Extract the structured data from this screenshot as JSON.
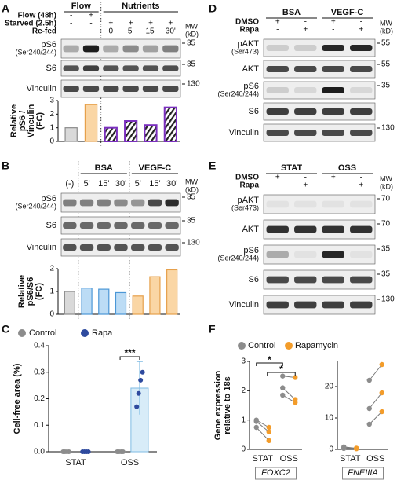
{
  "letters": [
    "A",
    "B",
    "C",
    "D",
    "E",
    "F"
  ],
  "blots": [
    {
      "groups": [
        "Flow",
        "Nutrients"
      ],
      "conditions": [
        {
          "label": "Flow (48h)",
          "signs": [
            "-",
            "+"
          ]
        },
        {
          "label": "Starved (2.5h)",
          "signs": [
            "-",
            "-",
            "+",
            "+",
            "+",
            "+"
          ]
        },
        {
          "label": "Re-fed",
          "signs": [
            "0",
            "5'",
            "15'",
            "30'"
          ]
        }
      ],
      "mw_header": [
        "MW",
        "(kD)"
      ],
      "rows": [
        {
          "label": "pS6",
          "sub": "(Ser240/244)",
          "mw": 35
        },
        {
          "label": "S6",
          "mw": 35
        },
        {
          "label": "Vinculin",
          "mw": 130
        }
      ]
    },
    {
      "groups": [
        "BSA",
        "VEGF-C"
      ],
      "lane_labels": [
        "(-)",
        "5'",
        "15'",
        "30'",
        "5'",
        "15'",
        "30'"
      ],
      "mw_header": [
        "MW",
        "(kD)"
      ],
      "rows": [
        {
          "label": "pS6",
          "sub": "(Ser240/244)",
          "mw": 35
        },
        {
          "label": "S6",
          "mw": 35
        },
        {
          "label": "Vinculin",
          "mw": 130
        }
      ]
    },
    {
      "groups": [
        "BSA",
        "VEGF-C"
      ],
      "conditions": [
        {
          "label": "DMSO",
          "signs": [
            "+",
            "-",
            "+",
            "-"
          ]
        },
        {
          "label": "Rapa",
          "signs": [
            "-",
            "+",
            "-",
            "+"
          ]
        }
      ],
      "mw_header": [
        "MW",
        "(kD)"
      ],
      "rows": [
        {
          "label": "pAKT",
          "sub": "(Ser473)",
          "mw": 55
        },
        {
          "label": "AKT",
          "mw": 55
        },
        {
          "label": "pS6",
          "sub": "(Ser240/244)",
          "mw": 35
        },
        {
          "label": "S6"
        },
        {
          "label": "Vinculin",
          "mw": 130
        }
      ]
    },
    {
      "groups": [
        "STAT",
        "OSS"
      ],
      "conditions": [
        {
          "label": "DMSO",
          "signs": [
            "+",
            "-",
            "+",
            "-"
          ]
        },
        {
          "label": "Rapa",
          "signs": [
            "-",
            "+",
            "-",
            "+"
          ]
        }
      ],
      "mw_header": [
        "MW",
        "(kD)"
      ],
      "rows": [
        {
          "label": "pAKT",
          "sub": "(Ser473)",
          "mw": 70
        },
        {
          "label": "AKT",
          "mw": 70
        },
        {
          "label": "pS6",
          "sub": "(Ser240/244)",
          "mw": 35
        },
        {
          "label": "S6",
          "mw": 35
        },
        {
          "label": "Vinculin",
          "mw": 130
        }
      ]
    }
  ],
  "chart_data": [
    {
      "type": "bar",
      "ylabel": [
        "Relative",
        "pS6 /",
        "Vinculin",
        "(FC)"
      ],
      "values": [
        1,
        2.7,
        1.0,
        1.5,
        1.2,
        2.5
      ],
      "colors": [
        "#d9d9d9",
        "#fad6a5",
        "#ffffff",
        "#ffffff",
        "#ffffff",
        "#ffffff"
      ],
      "edgecolors": [
        "#8c8c8c",
        "#e6a04b",
        "#7b2fbf",
        "#7b2fbf",
        "#7b2fbf",
        "#7b2fbf"
      ],
      "hatch": [
        false,
        false,
        true,
        true,
        true,
        true
      ],
      "ylim": [
        0,
        3
      ],
      "yticks": [
        0,
        1,
        2,
        3
      ]
    },
    {
      "type": "bar",
      "ylabel": [
        "Relative",
        "pS6/S6",
        "(FC)"
      ],
      "values": [
        1,
        1.15,
        1.1,
        0.95,
        0.8,
        1.65,
        1.95
      ],
      "colors": [
        "#d9d9d9",
        "#bcdcf5",
        "#bcdcf5",
        "#bcdcf5",
        "#fad6a5",
        "#fad6a5",
        "#fad6a5"
      ],
      "edgecolors": [
        "#8c8c8c",
        "#4b97d6",
        "#4b97d6",
        "#4b97d6",
        "#e6a04b",
        "#e6a04b",
        "#e6a04b"
      ],
      "hatch": [
        false,
        false,
        false,
        false,
        false,
        false,
        false
      ],
      "ylim": [
        0,
        2
      ],
      "yticks": [
        0,
        1,
        2
      ]
    },
    {
      "type": "dotbar",
      "ylabel": "Cell-free area (%)",
      "categories": [
        "STAT",
        "OSS"
      ],
      "series": [
        {
          "name": "Control",
          "color": "#8c8c8c",
          "bar_color": "#e6e6e6",
          "edge_color": "#8c8c8c",
          "values": [
            0,
            0
          ],
          "points": [
            [
              0,
              0,
              0,
              0
            ],
            [
              0,
              0,
              0,
              0
            ]
          ]
        },
        {
          "name": "Rapa",
          "color": "#2e4a9e",
          "bar_color": "#d8ecf8",
          "edge_color": "#7fbbe3",
          "values": [
            0,
            0.24
          ],
          "errors": [
            0,
            0.1
          ],
          "points": [
            [
              0,
              0,
              0,
              0
            ],
            [
              0.17,
              0.22,
              0.27,
              0.3
            ]
          ]
        }
      ],
      "ylim": [
        0,
        0.4
      ],
      "yticks": [
        {
          "value": 0,
          "label": "0.0"
        },
        {
          "value": 0.1,
          "label": "0.1"
        },
        {
          "value": 0.2,
          "label": "0.2"
        },
        {
          "value": 0.3,
          "label": "0.3"
        },
        {
          "value": 0.4,
          "label": "0.4"
        }
      ],
      "annotation": "***"
    },
    {
      "type": "paired",
      "ylabel": [
        "Gene expression",
        "relative to 18s"
      ],
      "xlabel": "FOXC2",
      "categories": [
        "STAT",
        "OSS"
      ],
      "series": [
        {
          "name": "Control",
          "color": "#8c8c8c",
          "values": [
            [
              1.0,
              0.95,
              0.75
            ],
            [
              2.1,
              2.5,
              1.85
            ]
          ]
        },
        {
          "name": "Rapamycin",
          "color": "#f39c2a",
          "values": [
            [
              0.75,
              0.6,
              0.3
            ],
            [
              1.7,
              2.45,
              1.6
            ]
          ]
        }
      ],
      "ylim": [
        0,
        3
      ],
      "yticks": [
        0,
        1,
        2,
        3
      ],
      "annotations": [
        "*",
        "*"
      ]
    },
    {
      "type": "paired",
      "xlabel": "FNEIIIA",
      "categories": [
        "STAT",
        "OSS"
      ],
      "series": [
        {
          "color": "#8c8c8c",
          "values": [
            [
              0.8,
              0.5,
              0.3
            ],
            [
              8,
              13,
              22
            ]
          ]
        },
        {
          "color": "#f39c2a",
          "values": [
            [
              0.3,
              0.4,
              0.2
            ],
            [
              12,
              18,
              27
            ]
          ]
        }
      ],
      "ylim": [
        0,
        28
      ],
      "yticks": [
        0,
        10,
        20
      ]
    }
  ]
}
